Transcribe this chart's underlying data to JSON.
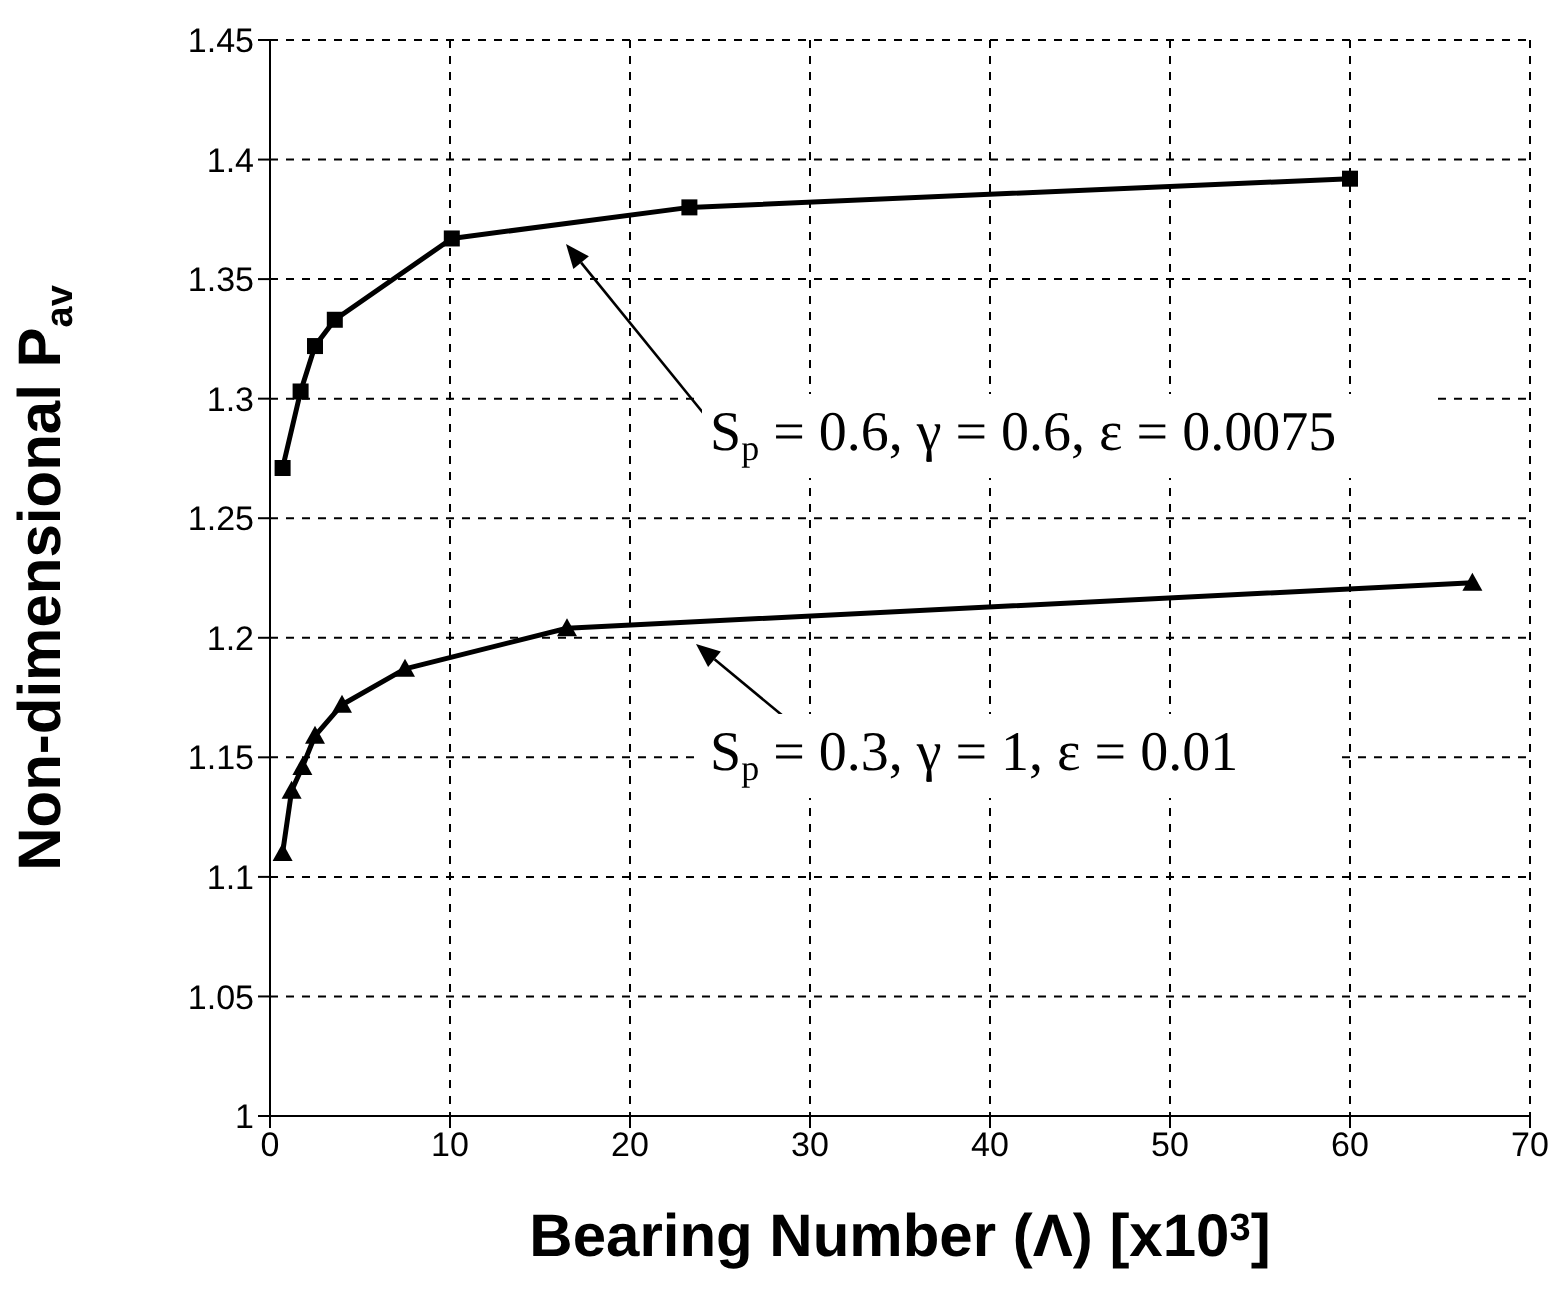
{
  "chart_data": {
    "type": "line",
    "xlabel": "Bearing Number (Λ)  [x10$^{3}$]",
    "ylabel": "Non-dimensional P$_{av}$",
    "series": [
      {
        "color": "#000000",
        "marker": "square",
        "x": [
          0.7,
          1.7,
          2.5,
          3.6,
          10.1,
          23.3,
          60
        ],
        "values": [
          1.271,
          1.303,
          1.322,
          1.333,
          1.367,
          1.38,
          1.392
        ]
      },
      {
        "color": "#000000",
        "marker": "triangle",
        "x": [
          0.7,
          1.2,
          1.8,
          2.5,
          4.0,
          7.5,
          16.5,
          66.8
        ],
        "values": [
          1.11,
          1.136,
          1.146,
          1.159,
          1.172,
          1.187,
          1.204,
          1.223
        ]
      }
    ],
    "annotations": [
      "S$_{p}$ = 0.6, γ = 0.6, ε = 0.0075",
      "S$_{p}$ = 0.3, γ = 1, ε = 0.01"
    ],
    "xlim": [
      0,
      70
    ],
    "xticks": [
      0,
      10,
      20,
      30,
      40,
      50,
      60,
      70
    ],
    "ylim": [
      1,
      1.45
    ],
    "yticks": [
      1,
      1.05,
      1.1,
      1.15,
      1.2,
      1.25,
      1.3,
      1.35,
      1.4,
      1.45
    ],
    "grid": true,
    "line_style": "solid"
  }
}
